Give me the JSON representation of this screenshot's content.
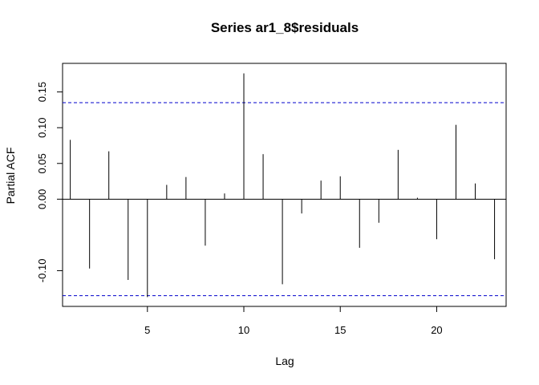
{
  "chart_data": {
    "type": "bar",
    "title": "Series  ar1_8$residuals",
    "xlabel": "Lag",
    "ylabel": "Partial ACF",
    "xlim": [
      0.6,
      23.6
    ],
    "ylim": [
      -0.15,
      0.19
    ],
    "x_ticks": [
      5,
      10,
      15,
      20
    ],
    "y_ticks": [
      -0.1,
      0.0,
      0.05,
      0.1,
      0.15
    ],
    "y_tick_labels": [
      "-0.10",
      "0.00",
      "0.05",
      "0.10",
      "0.15"
    ],
    "x": [
      1,
      2,
      3,
      4,
      5,
      6,
      7,
      8,
      9,
      10,
      11,
      12,
      13,
      14,
      15,
      16,
      17,
      18,
      19,
      20,
      21,
      22,
      23
    ],
    "values": [
      0.083,
      -0.097,
      0.067,
      -0.113,
      -0.137,
      0.02,
      0.031,
      -0.065,
      0.008,
      0.176,
      0.063,
      -0.119,
      -0.02,
      0.026,
      0.032,
      -0.068,
      -0.033,
      0.069,
      0.002,
      -0.056,
      0.104,
      0.022,
      -0.084
    ],
    "confidence_bound": 0.135,
    "confidence_color": "#0000cc",
    "bar_color": "#000000",
    "grid": false,
    "legend": "none"
  }
}
